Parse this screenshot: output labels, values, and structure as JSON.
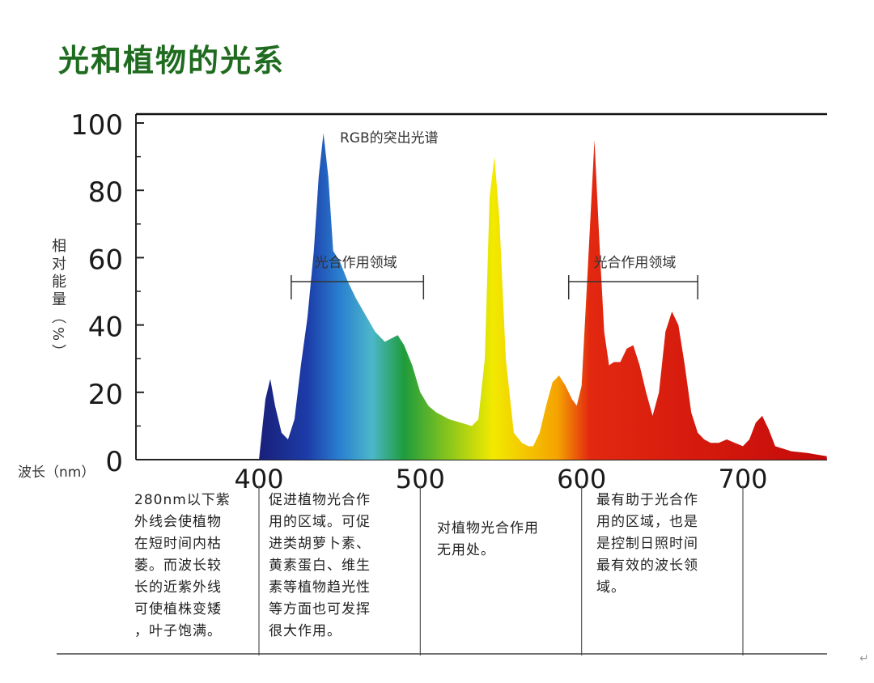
{
  "title": "光和植物的光系",
  "y_axis_label": "相对能量（%）",
  "x_axis_label": "波长（nm）",
  "corner_mark": "↵",
  "chart_data": {
    "type": "area",
    "title": "光和植物的光系",
    "xlabel": "波长（nm）",
    "ylabel": "相对能量（%）",
    "xlim": [
      330,
      755
    ],
    "ylim": [
      0,
      100
    ],
    "x_ticks": [
      400,
      500,
      600,
      700
    ],
    "y_ticks": [
      0,
      20,
      40,
      60,
      80,
      100
    ],
    "y_tick_labels": [
      "0",
      "20",
      "40",
      "60",
      "80",
      "100"
    ],
    "colors": [
      "#1a1f7a",
      "#1c3ca8",
      "#2a7fd0",
      "#4cb7c9",
      "#1f9c3c",
      "#7fc21f",
      "#f2ea00",
      "#f5a300",
      "#e32810",
      "#c40a0a"
    ],
    "series": [
      {
        "x": [
          400,
          404,
          407,
          410,
          414,
          418,
          422,
          426,
          430,
          434,
          437,
          440,
          443,
          446,
          450,
          455,
          460,
          466,
          472,
          478,
          482,
          486,
          490,
          495,
          500,
          505,
          510,
          518,
          525,
          532,
          536,
          540,
          543,
          546,
          549,
          553,
          558,
          563,
          567,
          570,
          574,
          578,
          582,
          586,
          590,
          594,
          597,
          600,
          604,
          608,
          611,
          614,
          617,
          620,
          624,
          628,
          632,
          636,
          640,
          644,
          648,
          652,
          656,
          660,
          664,
          668,
          672,
          676,
          680,
          685,
          690,
          695,
          700,
          704,
          708,
          712,
          716,
          720,
          730,
          740,
          752
        ],
        "y": [
          0,
          18,
          24,
          16,
          8,
          6,
          12,
          28,
          42,
          62,
          84,
          97,
          84,
          62,
          59,
          53,
          48,
          43,
          38,
          35,
          36,
          37,
          34,
          28,
          20,
          16,
          14,
          12,
          11,
          10,
          12,
          30,
          78,
          90,
          72,
          30,
          8,
          5,
          4,
          4,
          8,
          16,
          23,
          25,
          22,
          18,
          16,
          22,
          58,
          95,
          65,
          38,
          28,
          29,
          29,
          33,
          34,
          28,
          20,
          13,
          20,
          38,
          44,
          40,
          28,
          14,
          8,
          6,
          5,
          5,
          6,
          5,
          4,
          6,
          11,
          13,
          9,
          4,
          2.5,
          2,
          1
        ]
      }
    ],
    "annotations": [
      {
        "text": "RGB的突出光谱",
        "x": 505,
        "y": 88
      },
      {
        "text": "光合作用领域",
        "x": 460,
        "y": 55,
        "range": [
          420,
          502
        ]
      },
      {
        "text": "光合作用领域",
        "x": 633,
        "y": 55,
        "range": [
          592,
          672
        ]
      }
    ],
    "bands": [
      {
        "from": 330,
        "to": 400,
        "note": "280nm以下紫\n外线会使植物\n在短时间内枯\n萎。而波长较\n长的近紫外线\n可使植株变矮\n，叶子饱满。"
      },
      {
        "from": 400,
        "to": 500,
        "note": "促进植物光合作\n用的区域。可促\n进类胡萝卜素、\n黄素蛋白、维生\n素等植物趋光性\n等方面也可发挥\n很大作用。"
      },
      {
        "from": 500,
        "to": 600,
        "note": "对植物光合作用\n无用处。"
      },
      {
        "from": 600,
        "to": 700,
        "note": "最有助于光合作\n用的区域，也是\n是控制日照时间\n最有效的波长领\n域。"
      }
    ]
  }
}
